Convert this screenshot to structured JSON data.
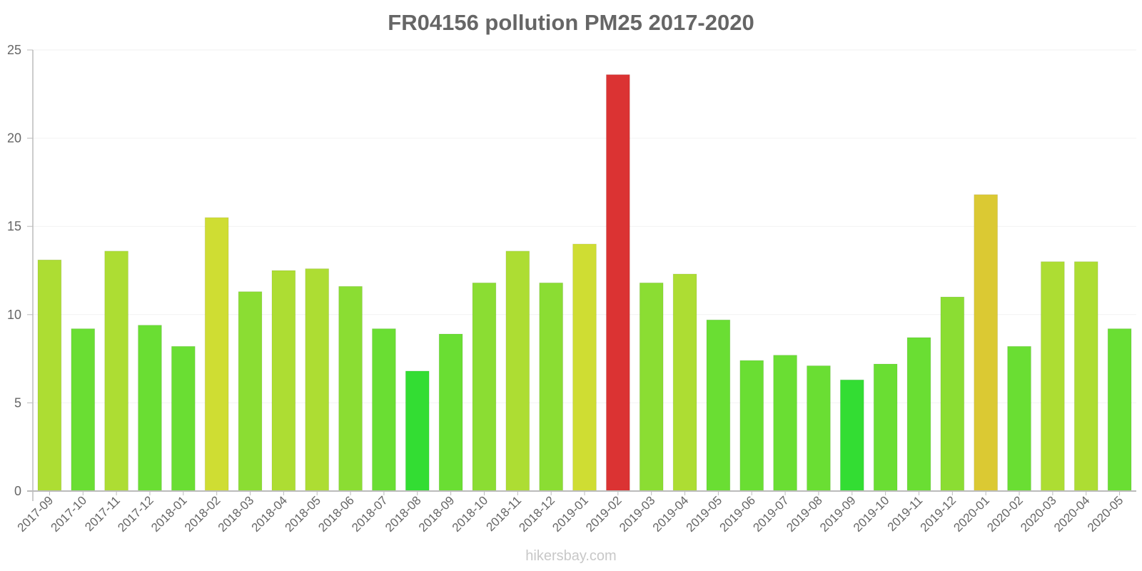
{
  "chart_data": {
    "type": "bar",
    "title": "FR04156 pollution PM25 2017-2020",
    "xlabel": "",
    "ylabel": "",
    "ylim": [
      0,
      25
    ],
    "yticks": [
      0,
      5,
      10,
      15,
      20,
      25
    ],
    "grid": true,
    "legend": null,
    "categories": [
      "2017-09",
      "2017-10",
      "2017-11",
      "2017-12",
      "2018-01",
      "2018-02",
      "2018-03",
      "2018-04",
      "2018-05",
      "2018-06",
      "2018-07",
      "2018-08",
      "2018-09",
      "2018-10",
      "2018-11",
      "2018-12",
      "2019-01",
      "2019-02",
      "2019-03",
      "2019-04",
      "2019-05",
      "2019-06",
      "2019-07",
      "2019-08",
      "2019-09",
      "2019-10",
      "2019-11",
      "2019-12",
      "2020-01",
      "2020-02",
      "2020-03",
      "2020-04",
      "2020-05"
    ],
    "values": [
      13.1,
      9.2,
      13.6,
      9.4,
      8.2,
      15.5,
      11.3,
      12.5,
      12.6,
      11.6,
      9.2,
      6.8,
      8.9,
      11.8,
      13.6,
      11.8,
      14.0,
      23.6,
      11.8,
      12.3,
      9.7,
      7.4,
      7.7,
      7.1,
      6.3,
      7.2,
      8.7,
      11.0,
      16.8,
      8.2,
      13.0,
      13.0,
      9.2
    ],
    "color_scale": [
      {
        "max": 7,
        "color": "#33dd33"
      },
      {
        "max": 10,
        "color": "#6ade33"
      },
      {
        "max": 12,
        "color": "#8bdd33"
      },
      {
        "max": 13.8,
        "color": "#addd33"
      },
      {
        "max": 15.9,
        "color": "#cfdd33"
      },
      {
        "max": 20,
        "color": "#dbc933"
      },
      {
        "max": 100,
        "color": "#db3333"
      }
    ]
  },
  "watermark": "hikersbay.com",
  "colors": {
    "title": "#666666",
    "axis_text": "#666666",
    "axis_line": "#bbbbbb",
    "grid": "#f2f2f2"
  }
}
